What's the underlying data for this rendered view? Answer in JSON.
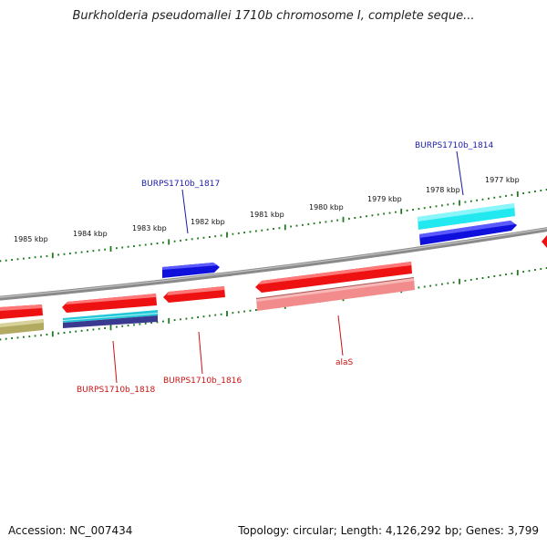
{
  "title": "Burkholderia pseudomallei 1710b chromosome I, complete seque...",
  "footer": {
    "accession_label": "Accession:",
    "accession": "NC_007434",
    "topology_label": "Topology:",
    "topology": "circular",
    "length_label": "Length:",
    "length": "4,126,292 bp",
    "genes_label": "Genes:",
    "genes": "3,799"
  },
  "ticks": [
    "1985 kbp",
    "1984 kbp",
    "1983 kbp",
    "1982 kbp",
    "1981 kbp",
    "1980 kbp",
    "1979 kbp",
    "1978 kbp",
    "1977 kbp"
  ],
  "gene_labels": [
    {
      "text": "BURPS1710b_1814",
      "color": "#1a1aa8"
    },
    {
      "text": "BURPS1710b_1817",
      "color": "#1a1aa8"
    },
    {
      "text": "BURPS1710b_1816",
      "color": "#cc1111"
    },
    {
      "text": "BURPS1710b_1818",
      "color": "#cc1111"
    },
    {
      "text": "alaS",
      "color": "#cc1111"
    }
  ],
  "colors": {
    "backbone": "#7a7a7a",
    "tick": "#1e7a1e",
    "gene_red": "#ee1111",
    "gene_pink": "#f08888",
    "gene_blue": "#1010dd",
    "gene_cyan": "#22e0e8",
    "gene_olive": "#b0a860",
    "gene_navy": "#333388"
  }
}
